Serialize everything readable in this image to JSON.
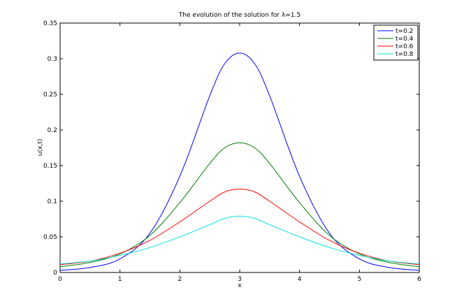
{
  "chart_data": {
    "type": "line",
    "title": "The evolution of the solution for λ=1.5",
    "xlabel": "x",
    "ylabel": "u(x,t)",
    "xlim": [
      0,
      6
    ],
    "ylim": [
      0,
      0.35
    ],
    "xticks": [
      "0",
      "1",
      "2",
      "3",
      "4",
      "5",
      "6"
    ],
    "yticks": [
      "0",
      "0.05",
      "0.1",
      "0.15",
      "0.2",
      "0.25",
      "0.3",
      "0.35"
    ],
    "grid": false,
    "legend_position": "top-right",
    "series": [
      {
        "name": "t=0.2",
        "color": "#0000ff",
        "x": [
          0,
          0.5,
          1,
          1.5,
          2,
          2.5,
          2.75,
          3,
          3.25,
          3.5,
          4,
          4.5,
          5,
          5.5,
          6
        ],
        "y": [
          0.003,
          0.007,
          0.019,
          0.055,
          0.135,
          0.248,
          0.293,
          0.308,
          0.293,
          0.248,
          0.135,
          0.055,
          0.019,
          0.007,
          0.003
        ]
      },
      {
        "name": "t=0.4",
        "color": "#008000",
        "x": [
          0,
          0.5,
          1,
          1.5,
          2,
          2.5,
          2.75,
          3,
          3.25,
          3.5,
          4,
          4.5,
          5,
          5.5,
          6
        ],
        "y": [
          0.008,
          0.014,
          0.026,
          0.052,
          0.098,
          0.153,
          0.175,
          0.182,
          0.175,
          0.153,
          0.098,
          0.052,
          0.026,
          0.014,
          0.008
        ]
      },
      {
        "name": "t=0.6",
        "color": "#ff0000",
        "x": [
          0,
          0.5,
          1,
          1.5,
          2,
          2.5,
          2.75,
          3,
          3.25,
          3.5,
          4,
          4.5,
          5,
          5.5,
          6
        ],
        "y": [
          0.011,
          0.016,
          0.027,
          0.045,
          0.071,
          0.1,
          0.113,
          0.117,
          0.113,
          0.1,
          0.071,
          0.045,
          0.027,
          0.016,
          0.011
        ]
      },
      {
        "name": "t=0.8",
        "color": "#00e0e0",
        "x": [
          0,
          0.5,
          1,
          1.5,
          2,
          2.5,
          2.75,
          3,
          3.25,
          3.5,
          4,
          4.5,
          5,
          5.5,
          6
        ],
        "y": [
          0.012,
          0.016,
          0.024,
          0.035,
          0.05,
          0.067,
          0.076,
          0.079,
          0.076,
          0.067,
          0.05,
          0.035,
          0.024,
          0.016,
          0.012
        ]
      }
    ]
  }
}
